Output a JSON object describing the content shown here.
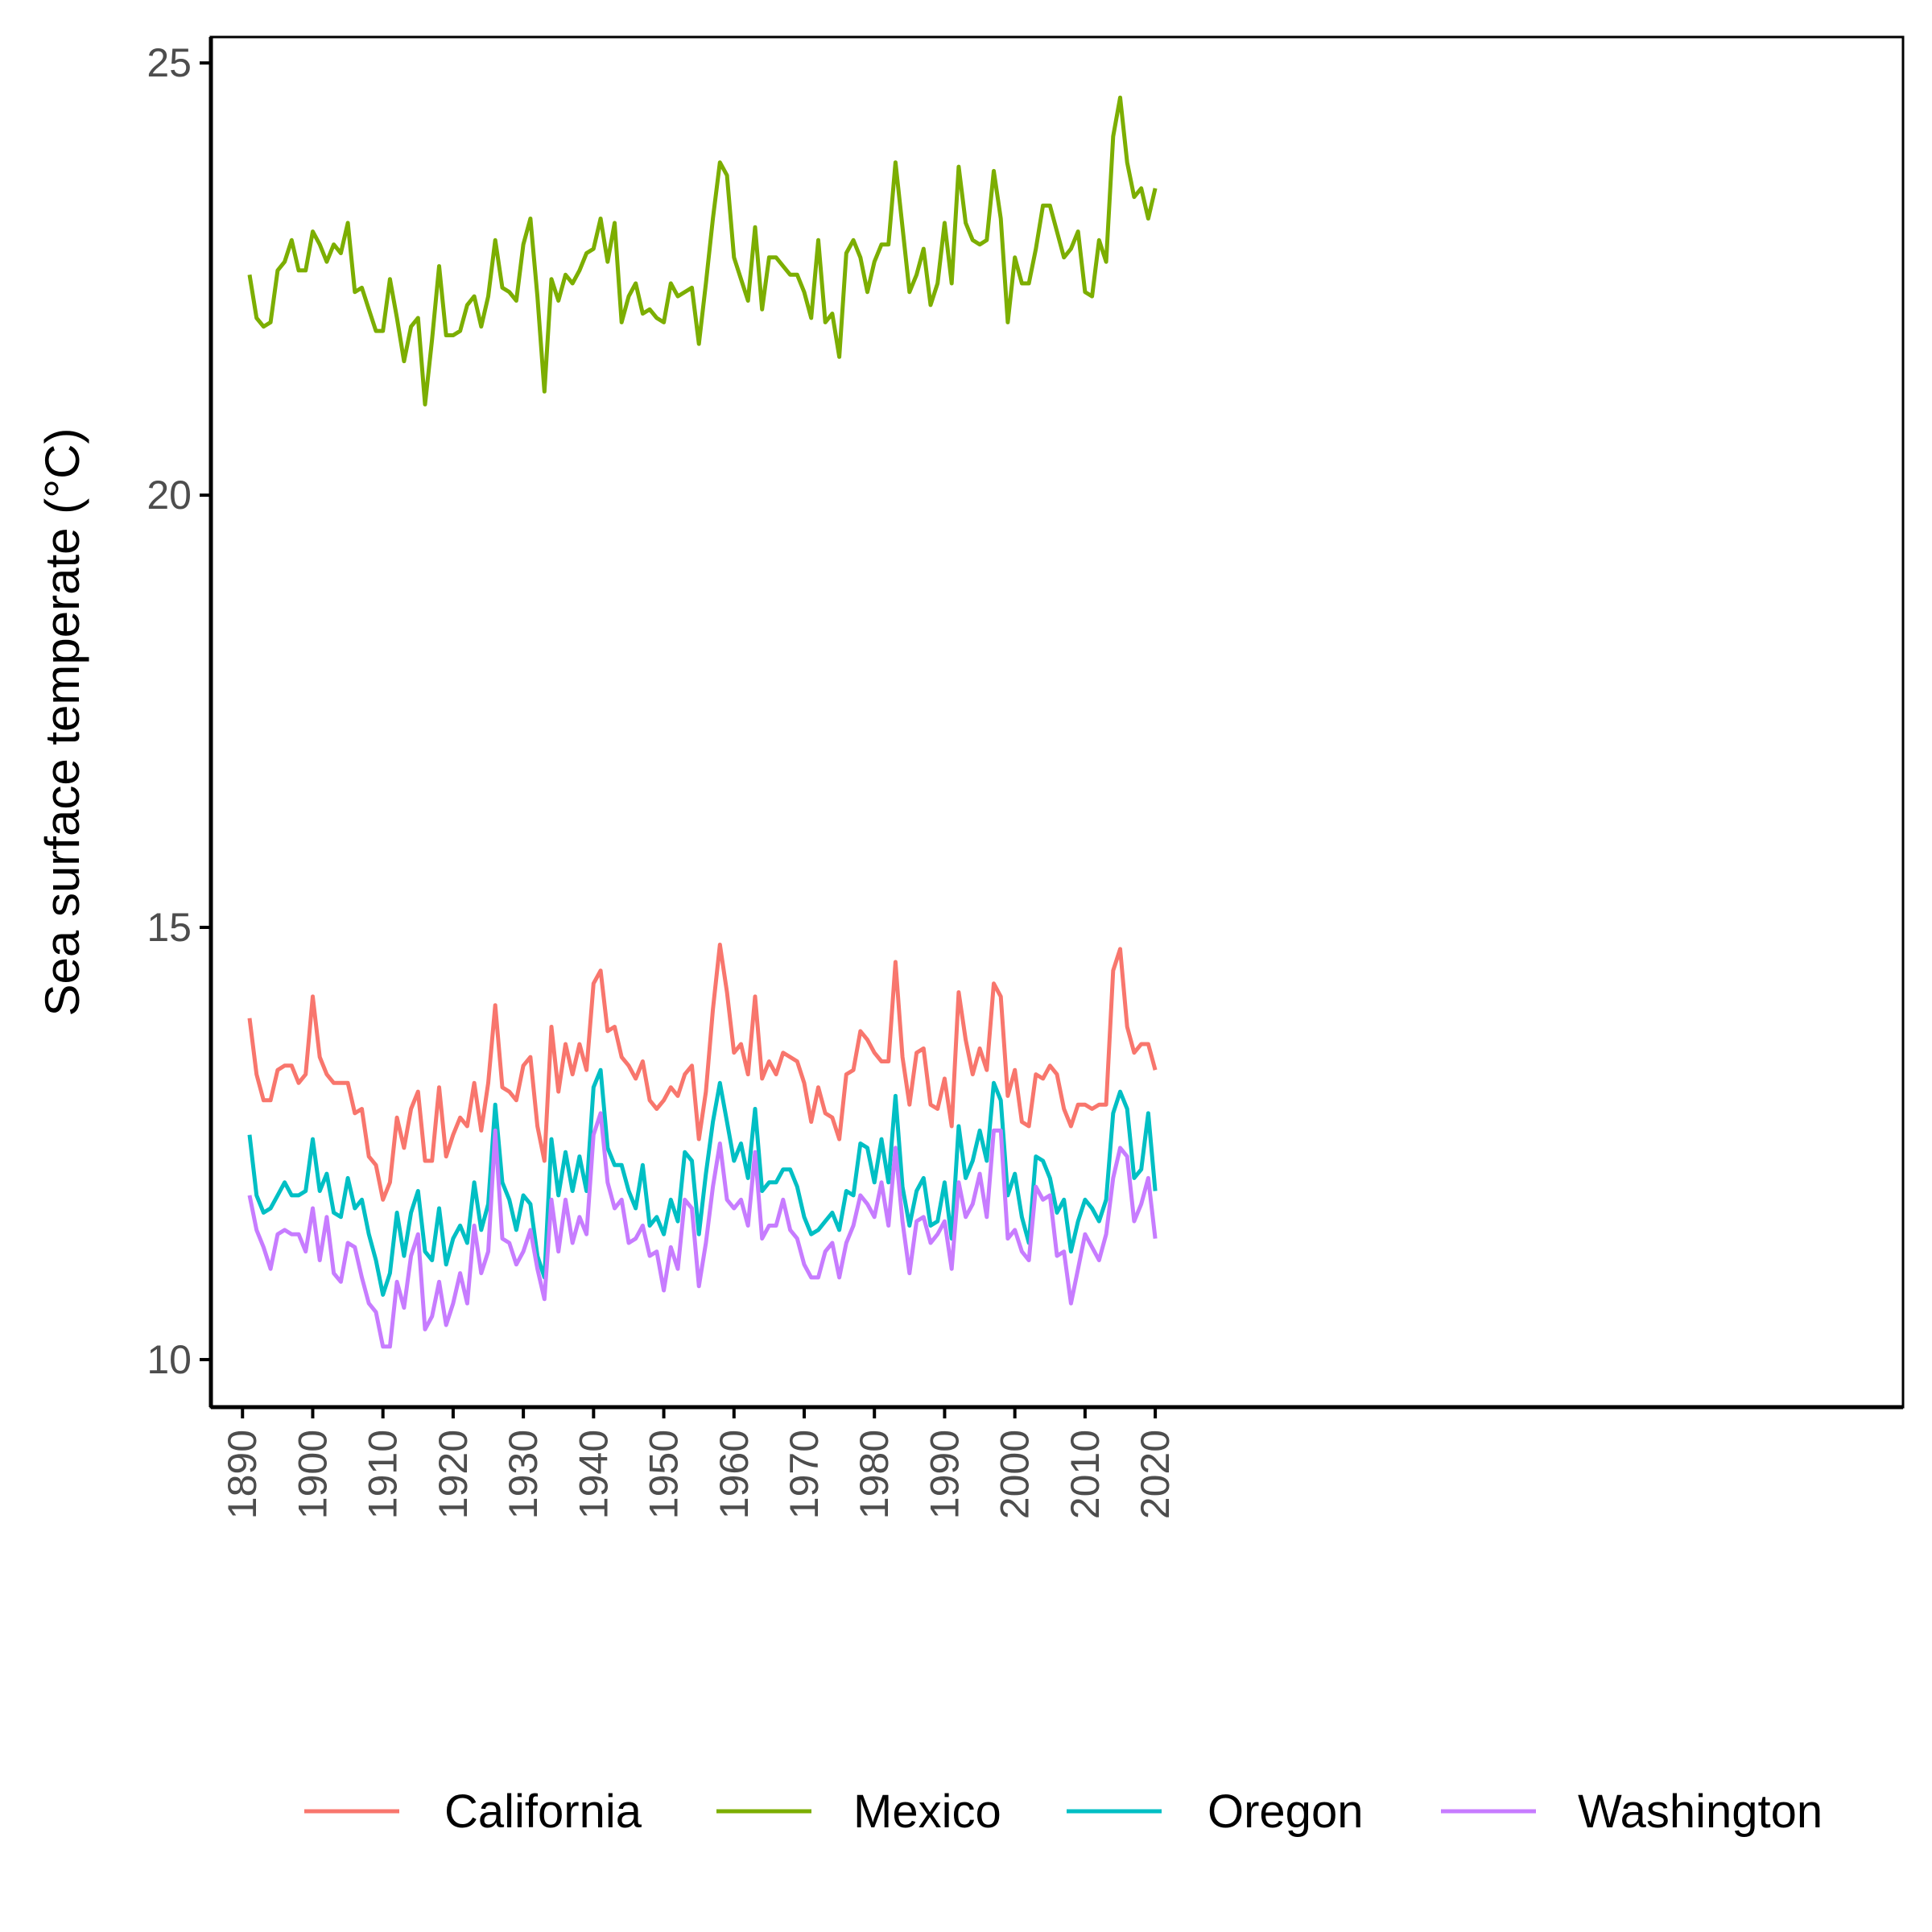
{
  "chart_data": {
    "type": "line",
    "title": "",
    "xlabel": "",
    "ylabel": "Sea surface temperate (°C)",
    "xlim": [
      1885.5,
      2126.5
    ],
    "ylim": [
      9.45,
      25.3
    ],
    "x_ticks": [
      1890,
      1900,
      1910,
      1920,
      1930,
      1940,
      1950,
      1960,
      1970,
      1980,
      1990,
      2000,
      2010,
      2020
    ],
    "y_ticks": [
      10,
      15,
      20,
      25
    ],
    "grid": false,
    "legend_position": "bottom",
    "x": [
      1891,
      1892,
      1893,
      1894,
      1895,
      1896,
      1897,
      1898,
      1899,
      1900,
      1901,
      1902,
      1903,
      1904,
      1905,
      1906,
      1907,
      1908,
      1909,
      1910,
      1911,
      1912,
      1913,
      1914,
      1915,
      1916,
      1917,
      1918,
      1919,
      1920,
      1921,
      1922,
      1923,
      1924,
      1925,
      1926,
      1927,
      1928,
      1929,
      1930,
      1931,
      1932,
      1933,
      1934,
      1935,
      1936,
      1937,
      1938,
      1939,
      1940,
      1941,
      1942,
      1943,
      1944,
      1945,
      1946,
      1947,
      1948,
      1949,
      1950,
      1951,
      1952,
      1953,
      1954,
      1955,
      1956,
      1957,
      1958,
      1959,
      1960,
      1961,
      1962,
      1963,
      1964,
      1965,
      1966,
      1967,
      1968,
      1969,
      1970,
      1971,
      1972,
      1973,
      1974,
      1975,
      1976,
      1977,
      1978,
      1979,
      1980,
      1981,
      1982,
      1983,
      1984,
      1985,
      1986,
      1987,
      1988,
      1989,
      1990,
      1991,
      1992,
      1993,
      1994,
      1995,
      1996,
      1997,
      1998,
      1999,
      2000,
      2001,
      2002,
      2003,
      2004,
      2005,
      2006,
      2007,
      2008,
      2009,
      2010,
      2011,
      2012,
      2013,
      2014,
      2015,
      2016,
      2017,
      2018,
      2019,
      2020
    ],
    "series": [
      {
        "name": "California",
        "color": "#F8766D",
        "values": [
          13.95,
          13.3,
          13.0,
          13.0,
          13.35,
          13.4,
          13.4,
          13.2,
          13.3,
          14.2,
          13.5,
          13.3,
          13.2,
          13.2,
          13.2,
          12.85,
          12.9,
          12.35,
          12.25,
          11.85,
          12.05,
          12.8,
          12.45,
          12.9,
          13.1,
          12.3,
          12.3,
          13.15,
          12.35,
          12.6,
          12.8,
          12.7,
          13.2,
          12.65,
          13.2,
          14.1,
          13.15,
          13.1,
          13.0,
          13.4,
          13.5,
          12.7,
          12.3,
          13.85,
          13.1,
          13.65,
          13.3,
          13.65,
          13.35,
          14.35,
          14.5,
          13.8,
          13.85,
          13.5,
          13.4,
          13.25,
          13.45,
          13.0,
          12.9,
          13.0,
          13.15,
          13.05,
          13.3,
          13.4,
          12.55,
          13.1,
          14.05,
          14.8,
          14.25,
          13.55,
          13.65,
          13.3,
          14.2,
          13.25,
          13.45,
          13.3,
          13.55,
          13.5,
          13.45,
          13.2,
          12.75,
          13.15,
          12.85,
          12.8,
          12.55,
          13.3,
          13.35,
          13.8,
          13.7,
          13.55,
          13.45,
          13.45,
          14.6,
          13.5,
          12.95,
          13.55,
          13.6,
          12.95,
          12.9,
          13.25,
          12.7,
          14.25,
          13.7,
          13.3,
          13.6,
          13.35,
          14.35,
          14.2,
          13.05,
          13.35,
          12.75,
          12.7,
          13.3,
          13.25,
          13.4,
          13.3,
          12.9,
          12.7,
          12.95,
          12.95,
          12.9,
          12.95,
          12.95,
          14.5,
          14.75,
          13.85,
          13.55,
          13.65,
          13.65,
          13.35
        ]
      },
      {
        "name": "Mexico",
        "color": "#7CAE00",
        "values": [
          22.55,
          22.05,
          21.95,
          22.0,
          22.6,
          22.7,
          22.95,
          22.6,
          22.6,
          23.05,
          22.9,
          22.7,
          22.9,
          22.8,
          23.15,
          22.35,
          22.4,
          22.15,
          21.9,
          21.9,
          22.5,
          22.05,
          21.55,
          21.95,
          22.05,
          21.05,
          21.8,
          22.65,
          21.85,
          21.85,
          21.9,
          22.2,
          22.3,
          21.95,
          22.3,
          22.95,
          22.4,
          22.35,
          22.25,
          22.9,
          23.2,
          22.3,
          21.2,
          22.5,
          22.25,
          22.55,
          22.45,
          22.6,
          22.8,
          22.85,
          23.2,
          22.7,
          23.15,
          22.0,
          22.3,
          22.45,
          22.1,
          22.15,
          22.05,
          22.0,
          22.45,
          22.3,
          22.35,
          22.4,
          21.75,
          22.45,
          23.2,
          23.85,
          23.7,
          22.75,
          22.5,
          22.25,
          23.1,
          22.15,
          22.75,
          22.75,
          22.65,
          22.55,
          22.55,
          22.35,
          22.05,
          22.95,
          22.0,
          22.1,
          21.6,
          22.8,
          22.95,
          22.75,
          22.35,
          22.7,
          22.9,
          22.9,
          23.85,
          23.1,
          22.35,
          22.55,
          22.85,
          22.2,
          22.45,
          23.15,
          22.45,
          23.8,
          23.15,
          22.95,
          22.9,
          22.95,
          23.75,
          23.2,
          22.0,
          22.75,
          22.45,
          22.45,
          22.85,
          23.35,
          23.35,
          23.05,
          22.75,
          22.85,
          23.05,
          22.35,
          22.3,
          22.95,
          22.7,
          24.15,
          24.6,
          23.85,
          23.45,
          23.55,
          23.2,
          23.55
        ]
      },
      {
        "name": "Oregon",
        "color": "#00BFC4",
        "values": [
          12.6,
          11.9,
          11.7,
          11.75,
          11.9,
          12.05,
          11.9,
          11.9,
          11.95,
          12.55,
          11.95,
          12.15,
          11.7,
          11.65,
          12.1,
          11.75,
          11.85,
          11.45,
          11.15,
          10.75,
          11.0,
          11.7,
          11.2,
          11.7,
          11.95,
          11.25,
          11.15,
          11.75,
          11.1,
          11.4,
          11.55,
          11.35,
          12.05,
          11.5,
          11.8,
          12.95,
          12.05,
          11.85,
          11.5,
          11.9,
          11.8,
          11.2,
          10.95,
          12.55,
          11.9,
          12.4,
          11.95,
          12.35,
          11.95,
          13.15,
          13.35,
          12.45,
          12.25,
          12.25,
          11.95,
          11.75,
          12.25,
          11.55,
          11.65,
          11.45,
          11.85,
          11.6,
          12.4,
          12.3,
          11.45,
          12.15,
          12.75,
          13.2,
          12.75,
          12.3,
          12.5,
          12.1,
          12.9,
          11.95,
          12.05,
          12.05,
          12.2,
          12.2,
          12.0,
          11.65,
          11.45,
          11.5,
          11.6,
          11.7,
          11.5,
          11.95,
          11.9,
          12.5,
          12.45,
          12.05,
          12.55,
          12.05,
          13.05,
          12.0,
          11.55,
          11.95,
          12.1,
          11.55,
          11.6,
          12.05,
          11.4,
          12.7,
          12.1,
          12.3,
          12.65,
          12.3,
          13.2,
          13.0,
          11.9,
          12.15,
          11.65,
          11.35,
          12.35,
          12.3,
          12.1,
          11.7,
          11.85,
          11.25,
          11.6,
          11.85,
          11.75,
          11.6,
          11.85,
          12.85,
          13.1,
          12.9,
          12.1,
          12.2,
          12.85,
          11.95
        ]
      },
      {
        "name": "Washington",
        "color": "#C77CFF",
        "values": [
          11.9,
          11.5,
          11.3,
          11.05,
          11.45,
          11.5,
          11.45,
          11.45,
          11.25,
          11.75,
          11.15,
          11.65,
          11.0,
          10.9,
          11.35,
          11.3,
          10.95,
          10.65,
          10.55,
          10.15,
          10.15,
          10.9,
          10.6,
          11.2,
          11.45,
          10.35,
          10.5,
          10.9,
          10.4,
          10.65,
          11.0,
          10.65,
          11.55,
          11.0,
          11.25,
          12.65,
          11.4,
          11.35,
          11.1,
          11.25,
          11.5,
          11.05,
          10.7,
          11.85,
          11.25,
          11.85,
          11.35,
          11.65,
          11.45,
          12.6,
          12.85,
          12.05,
          11.75,
          11.85,
          11.35,
          11.4,
          11.55,
          11.2,
          11.25,
          10.8,
          11.3,
          11.05,
          11.85,
          11.75,
          10.85,
          11.35,
          12.0,
          12.5,
          11.85,
          11.75,
          11.85,
          11.55,
          12.4,
          11.4,
          11.55,
          11.55,
          11.85,
          11.5,
          11.4,
          11.1,
          10.95,
          10.95,
          11.25,
          11.35,
          10.95,
          11.35,
          11.55,
          11.9,
          11.8,
          11.65,
          12.05,
          11.55,
          12.45,
          11.6,
          11.0,
          11.6,
          11.65,
          11.35,
          11.45,
          11.6,
          11.05,
          12.05,
          11.65,
          11.8,
          12.15,
          11.65,
          12.65,
          12.65,
          11.4,
          11.5,
          11.25,
          11.15,
          12.0,
          11.85,
          11.9,
          11.2,
          11.25,
          10.65,
          11.05,
          11.45,
          11.3,
          11.15,
          11.45,
          12.1,
          12.45,
          12.35,
          11.6,
          11.8,
          12.1,
          11.4
        ]
      }
    ]
  }
}
